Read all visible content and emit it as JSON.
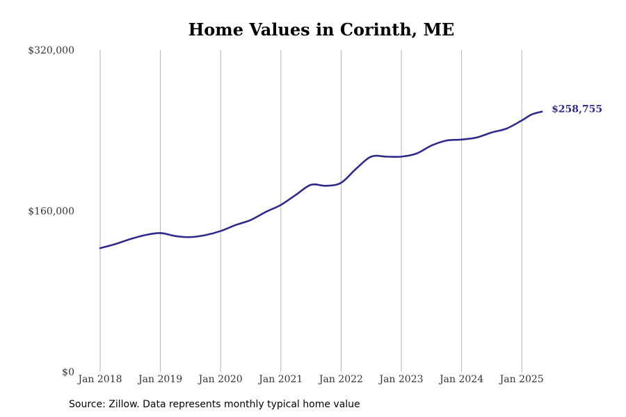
{
  "chart_data": {
    "type": "line",
    "title": "Home Values in Corinth, ME",
    "xlabel": "",
    "ylabel": "",
    "x_tick_labels": [
      "Jan 2018",
      "Jan 2019",
      "Jan 2020",
      "Jan 2021",
      "Jan 2022",
      "Jan 2023",
      "Jan 2024",
      "Jan 2025"
    ],
    "y_tick_labels": [
      "$0",
      "$160,000",
      "$320,000"
    ],
    "y_ticks": [
      0,
      160000,
      320000
    ],
    "ylim": [
      0,
      320000
    ],
    "xlim": [
      "2018-01",
      "2025-05"
    ],
    "grid": "vertical",
    "series": [
      {
        "color": "#2e2a8c",
        "x": [
          "2018-01",
          "2018-04",
          "2018-07",
          "2018-10",
          "2019-01",
          "2019-04",
          "2019-07",
          "2019-10",
          "2020-01",
          "2020-04",
          "2020-07",
          "2020-10",
          "2021-01",
          "2021-04",
          "2021-07",
          "2021-10",
          "2022-01",
          "2022-04",
          "2022-07",
          "2022-10",
          "2023-01",
          "2023-04",
          "2023-07",
          "2023-10",
          "2024-01",
          "2024-04",
          "2024-07",
          "2024-10",
          "2025-01",
          "2025-03",
          "2025-05"
        ],
        "values": [
          123000,
          127000,
          132000,
          136000,
          138000,
          135000,
          134000,
          136000,
          140000,
          146000,
          151000,
          159000,
          166000,
          176000,
          186000,
          185000,
          188000,
          202000,
          214000,
          214000,
          214000,
          217000,
          225000,
          230000,
          231000,
          233000,
          238000,
          242000,
          250000,
          256000,
          258755
        ]
      }
    ],
    "end_label": "$258,755"
  },
  "source": "Source: Zillow. Data represents monthly typical home value"
}
